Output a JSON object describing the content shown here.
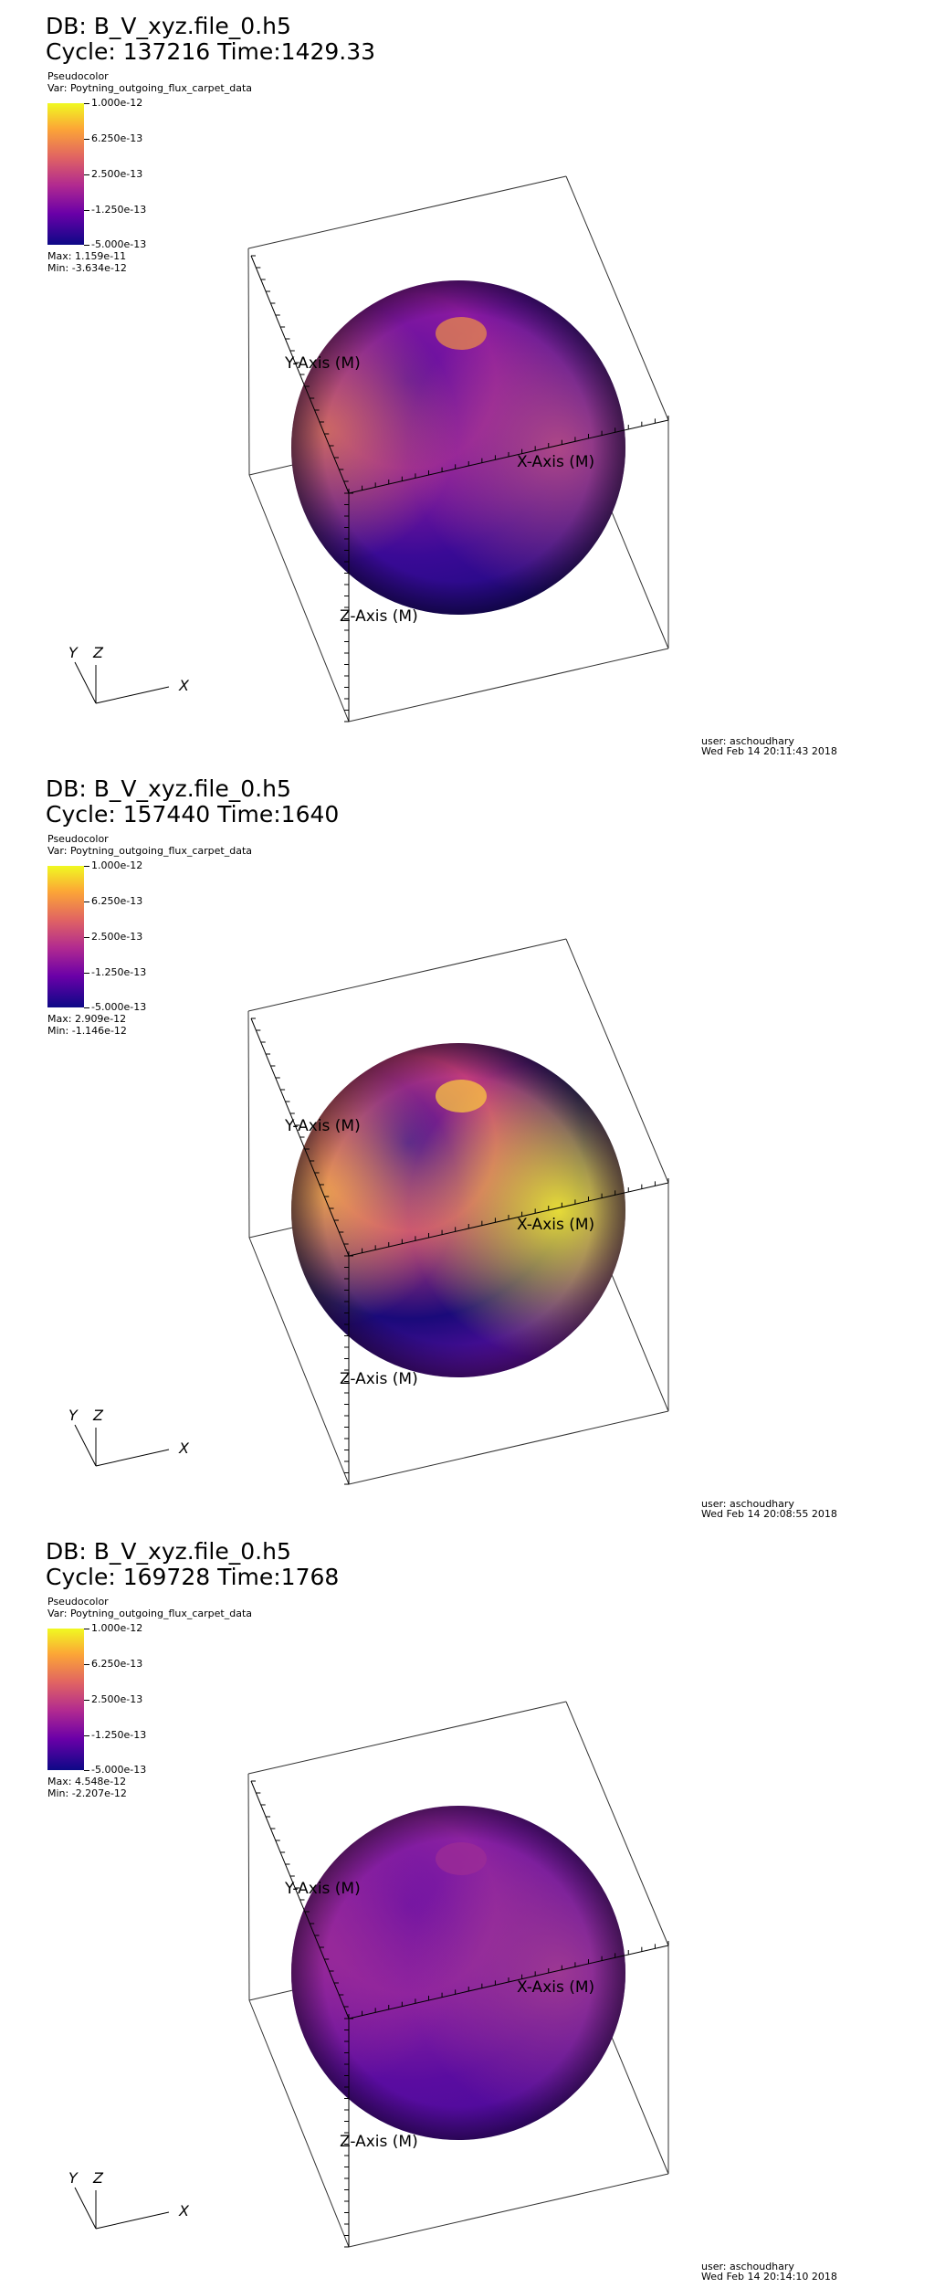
{
  "panels": [
    {
      "db": "DB: B_V_xyz.file_0.h5",
      "cycle": "Cycle: 137216   Time:1429.33",
      "plot_type": "Pseudocolor",
      "var": "Var: Poytning_outgoing_flux_carpet_data",
      "legend_ticks": [
        "1.000e-12",
        "6.250e-13",
        "2.500e-13",
        "-1.250e-13",
        "-5.000e-13"
      ],
      "max": "Max:  1.159e-11",
      "min": "Min: -3.634e-12",
      "x_axis": "X-Axis (M)",
      "y_axis": "Y-Axis (M)",
      "z_axis": "Z-Axis (M)",
      "triad": {
        "x": "X",
        "y": "Y",
        "z": "Z"
      },
      "user": "user: aschoudhary",
      "date": "Wed Feb 14 20:11:43 2018",
      "sphere_colors": [
        "#5b0da0",
        "#8c1aa0",
        "#b34a86",
        "#3a0a96",
        "#1e0a80",
        "#e88a4a"
      ]
    },
    {
      "db": "DB: B_V_xyz.file_0.h5",
      "cycle": "Cycle: 157440   Time:1640",
      "plot_type": "Pseudocolor",
      "var": "Var: Poytning_outgoing_flux_carpet_data",
      "legend_ticks": [
        "1.000e-12",
        "6.250e-13",
        "2.500e-13",
        "-1.250e-13",
        "-5.000e-13"
      ],
      "max": "Max:  2.909e-12",
      "min": "Min: -1.146e-12",
      "x_axis": "X-Axis (M)",
      "y_axis": "Y-Axis (M)",
      "z_axis": "Z-Axis (M)",
      "triad": {
        "x": "X",
        "y": "Y",
        "z": "Z"
      },
      "user": "user: aschoudhary",
      "date": "Wed Feb 14 20:08:55 2018",
      "sphere_colors": [
        "#3d0a98",
        "#c13c7c",
        "#f0e634",
        "#1a0a7a",
        "#6a10a8",
        "#f9c640"
      ]
    },
    {
      "db": "DB: B_V_xyz.file_0.h5",
      "cycle": "Cycle: 169728   Time:1768",
      "plot_type": "Pseudocolor",
      "var": "Var: Poytning_outgoing_flux_carpet_data",
      "legend_ticks": [
        "1.000e-12",
        "6.250e-13",
        "2.500e-13",
        "-1.250e-13",
        "-5.000e-13"
      ],
      "max": "Max:  4.548e-12",
      "min": "Min: -2.207e-12",
      "x_axis": "X-Axis (M)",
      "y_axis": "Y-Axis (M)",
      "z_axis": "Z-Axis (M)",
      "triad": {
        "x": "X",
        "y": "Y",
        "z": "Z"
      },
      "user": "user: aschoudhary",
      "date": "Wed Feb 14 20:14:10 2018",
      "sphere_colors": [
        "#6e12a4",
        "#8c22a0",
        "#a03a92",
        "#5a0ca0",
        "#4a0a9a",
        "#9c2c96"
      ]
    }
  ]
}
